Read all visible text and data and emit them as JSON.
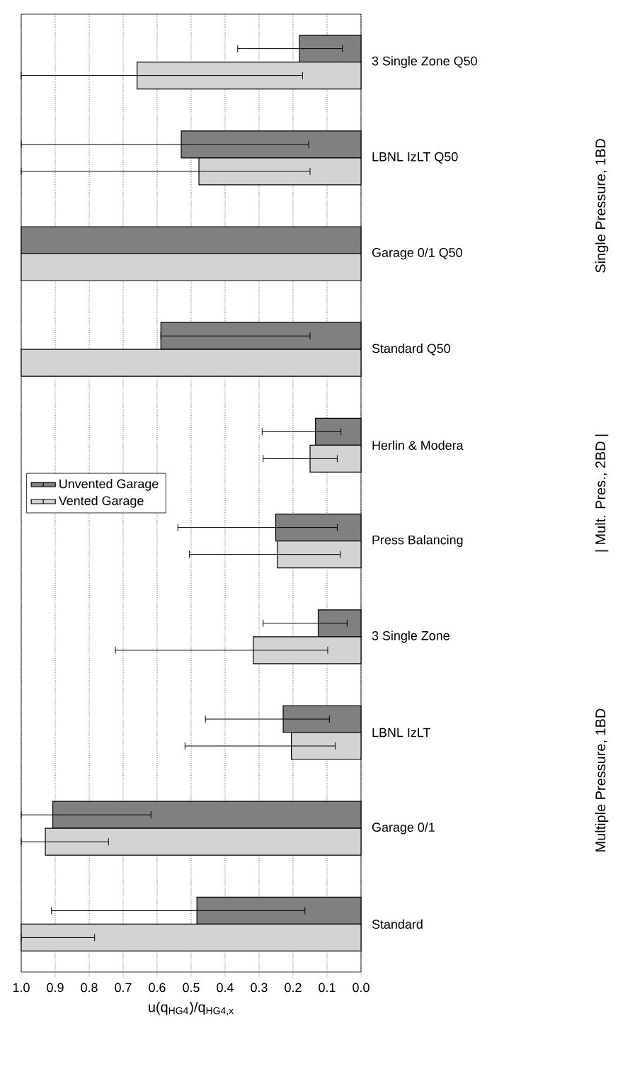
{
  "chart_data": {
    "type": "bar",
    "orientation": "horizontal",
    "categories": [
      "3 Single Zone Q50",
      "LBNL IzLT Q50",
      "Garage 0/1 Q50",
      "Standard Q50",
      "Herlin & Modera",
      "Press Balancing",
      "3 Single Zone",
      "LBNL IzLT",
      "Garage 0/1",
      "Standard"
    ],
    "series": [
      {
        "name": "Unvented Garage",
        "color": "#808080",
        "values": [
          0.181,
          0.529,
          1.0,
          0.589,
          0.134,
          0.251,
          0.126,
          0.229,
          0.907,
          0.483
        ],
        "errors": [
          [
            0.055,
            0.363
          ],
          [
            0.154,
            1.0
          ],
          null,
          [
            0.15,
            0.589
          ],
          [
            0.059,
            0.291
          ],
          [
            0.07,
            0.539
          ],
          [
            0.041,
            0.288
          ],
          [
            0.093,
            0.458
          ],
          [
            0.618,
            1.0
          ],
          [
            0.165,
            0.911
          ]
        ]
      },
      {
        "name": "Vented Garage",
        "color": "#d3d3d3",
        "values": [
          0.659,
          0.477,
          1.0,
          1.0,
          0.15,
          0.246,
          0.317,
          0.205,
          0.929,
          1.0
        ],
        "errors": [
          [
            0.172,
            1.0
          ],
          [
            0.15,
            1.0
          ],
          null,
          null,
          [
            0.07,
            0.288
          ],
          [
            0.061,
            0.505
          ],
          [
            0.098,
            0.723
          ],
          [
            0.076,
            0.518
          ],
          [
            0.743,
            1.0
          ],
          [
            0.784,
            1.0
          ]
        ]
      }
    ],
    "xlabel": "u(q$_{HG4}$)/q$_{HG4,x}$",
    "xlim": [
      1.0,
      0.0
    ],
    "xticks": [
      {
        "value": 0,
        "label": "0.0"
      },
      0.1,
      0.2,
      0.3,
      0.4,
      0.5,
      0.6,
      0.7,
      0.8,
      0.9,
      {
        "value": 1,
        "label": "1.0"
      }
    ],
    "grid": "x",
    "legend": "left",
    "annotations": [
      "Single Pressure, 1BD",
      "| Mult. Pres., 2BD |",
      "Multiple Pressure, 1BD"
    ]
  }
}
